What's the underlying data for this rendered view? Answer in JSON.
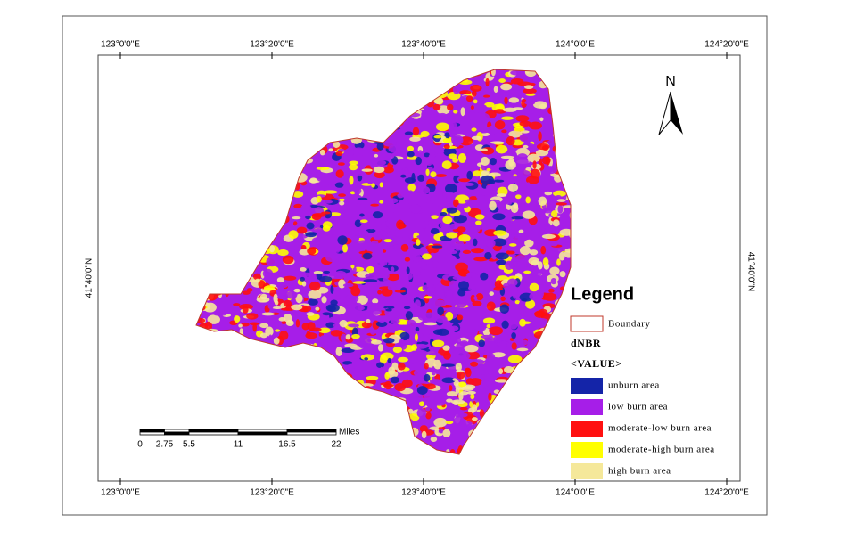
{
  "map": {
    "north": "N",
    "top_labels": [
      "123°0'0\"E",
      "123°20'0\"E",
      "123°40'0\"E",
      "124°0'0\"E",
      "124°20'0\"E"
    ],
    "bottom_labels": [
      "123°0'0\"E",
      "123°20'0\"E",
      "123°40'0\"E",
      "124°0'0\"E",
      "124°20'0\"E"
    ],
    "left_label": "41°40'0\"N",
    "right_label": "41°40'0\"N",
    "legend": {
      "title": "Legend",
      "boundary": "Boundary",
      "boundary_color": "#c0392b",
      "field": "dNBR",
      "value": "<VALUE>",
      "classes": [
        {
          "label": "unburn area",
          "color": "#1424a8"
        },
        {
          "label": "low burn area",
          "color": "#a61ee8"
        },
        {
          "label": "moderate-low burn area",
          "color": "#ff1010"
        },
        {
          "label": "moderate-high burn area",
          "color": "#ffff00"
        },
        {
          "label": "high burn area",
          "color": "#f5e89a"
        }
      ]
    },
    "scale_bar": {
      "unit": "Miles",
      "ticks": [
        0,
        2.75,
        5.5,
        11,
        16.5,
        22
      ]
    }
  }
}
